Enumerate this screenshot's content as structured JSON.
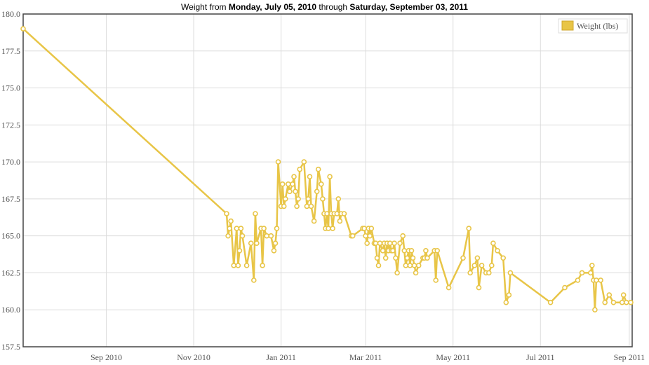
{
  "chart_data": {
    "type": "line",
    "title": {
      "prefix": "Weight from ",
      "start": "Monday, July 05, 2010",
      "middle": " through ",
      "end": "Saturday, September 03, 2011"
    },
    "xlabel": "",
    "ylabel": "",
    "ylim": [
      157.5,
      180.0
    ],
    "xlim": [
      "2010-07-05",
      "2011-09-03"
    ],
    "y_ticks": [
      "157.5",
      "160.0",
      "162.5",
      "165.0",
      "167.5",
      "170.0",
      "172.5",
      "175.0",
      "177.5",
      "180.0"
    ],
    "x_ticks": [
      {
        "label": "Sep 2010",
        "date": "2010-09-01"
      },
      {
        "label": "Nov 2010",
        "date": "2010-11-01"
      },
      {
        "label": "Jan 2011",
        "date": "2011-01-01"
      },
      {
        "label": "Mar 2011",
        "date": "2011-03-01"
      },
      {
        "label": "May 2011",
        "date": "2011-05-01"
      },
      {
        "label": "Jul 2011",
        "date": "2011-07-01"
      },
      {
        "label": "Sep 2011",
        "date": "2011-09-01"
      }
    ],
    "grid": true,
    "legend_position": "top-right",
    "color": "#e8c547",
    "series": [
      {
        "name": "Weight (lbs)",
        "points": [
          [
            "2010-07-05",
            179.0
          ],
          [
            "2010-11-24",
            166.5
          ],
          [
            "2010-11-25",
            165.0
          ],
          [
            "2010-11-26",
            165.5
          ],
          [
            "2010-11-27",
            166.0
          ],
          [
            "2010-11-29",
            163.0
          ],
          [
            "2010-12-01",
            165.5
          ],
          [
            "2010-12-02",
            163.0
          ],
          [
            "2010-12-03",
            164.0
          ],
          [
            "2010-12-04",
            165.5
          ],
          [
            "2010-12-05",
            165.0
          ],
          [
            "2010-12-08",
            163.0
          ],
          [
            "2010-12-11",
            164.5
          ],
          [
            "2010-12-13",
            162.0
          ],
          [
            "2010-12-14",
            166.5
          ],
          [
            "2010-12-15",
            164.5
          ],
          [
            "2010-12-18",
            165.5
          ],
          [
            "2010-12-19",
            163.0
          ],
          [
            "2010-12-20",
            165.5
          ],
          [
            "2010-12-22",
            165.0
          ],
          [
            "2010-12-25",
            165.0
          ],
          [
            "2010-12-27",
            164.0
          ],
          [
            "2010-12-28",
            164.5
          ],
          [
            "2010-12-29",
            165.5
          ],
          [
            "2010-12-30",
            170.0
          ],
          [
            "2011-01-01",
            167.0
          ],
          [
            "2011-01-02",
            168.5
          ],
          [
            "2011-01-03",
            167.0
          ],
          [
            "2011-01-04",
            167.5
          ],
          [
            "2011-01-06",
            168.5
          ],
          [
            "2011-01-07",
            168.0
          ],
          [
            "2011-01-09",
            168.5
          ],
          [
            "2011-01-10",
            169.0
          ],
          [
            "2011-01-11",
            168.0
          ],
          [
            "2011-01-12",
            167.0
          ],
          [
            "2011-01-13",
            167.5
          ],
          [
            "2011-01-14",
            169.5
          ],
          [
            "2011-01-17",
            170.0
          ],
          [
            "2011-01-19",
            167.0
          ],
          [
            "2011-01-20",
            167.5
          ],
          [
            "2011-01-21",
            169.0
          ],
          [
            "2011-01-22",
            167.0
          ],
          [
            "2011-01-24",
            166.0
          ],
          [
            "2011-01-26",
            168.0
          ],
          [
            "2011-01-27",
            169.5
          ],
          [
            "2011-01-29",
            168.5
          ],
          [
            "2011-01-30",
            167.5
          ],
          [
            "2011-01-31",
            166.5
          ],
          [
            "2011-02-01",
            165.5
          ],
          [
            "2011-02-02",
            166.5
          ],
          [
            "2011-02-03",
            165.5
          ],
          [
            "2011-02-04",
            169.0
          ],
          [
            "2011-02-05",
            166.5
          ],
          [
            "2011-02-06",
            165.5
          ],
          [
            "2011-02-07",
            166.5
          ],
          [
            "2011-02-09",
            166.5
          ],
          [
            "2011-02-10",
            167.5
          ],
          [
            "2011-02-11",
            166.0
          ],
          [
            "2011-02-12",
            166.5
          ],
          [
            "2011-02-14",
            166.5
          ],
          [
            "2011-02-19",
            165.0
          ],
          [
            "2011-02-20",
            165.0
          ],
          [
            "2011-02-27",
            165.5
          ],
          [
            "2011-02-28",
            165.5
          ],
          [
            "2011-03-01",
            165.0
          ],
          [
            "2011-03-02",
            164.5
          ],
          [
            "2011-03-03",
            165.5
          ],
          [
            "2011-03-04",
            165.0
          ],
          [
            "2011-03-05",
            165.5
          ],
          [
            "2011-03-07",
            164.5
          ],
          [
            "2011-03-08",
            164.5
          ],
          [
            "2011-03-09",
            163.5
          ],
          [
            "2011-03-10",
            163.0
          ],
          [
            "2011-03-11",
            164.5
          ],
          [
            "2011-03-13",
            164.0
          ],
          [
            "2011-03-14",
            164.5
          ],
          [
            "2011-03-15",
            163.5
          ],
          [
            "2011-03-16",
            164.5
          ],
          [
            "2011-03-17",
            164.0
          ],
          [
            "2011-03-18",
            164.5
          ],
          [
            "2011-03-19",
            164.0
          ],
          [
            "2011-03-20",
            164.0
          ],
          [
            "2011-03-21",
            164.5
          ],
          [
            "2011-03-22",
            163.5
          ],
          [
            "2011-03-23",
            162.5
          ],
          [
            "2011-03-25",
            164.5
          ],
          [
            "2011-03-27",
            165.0
          ],
          [
            "2011-03-28",
            164.0
          ],
          [
            "2011-03-29",
            163.0
          ],
          [
            "2011-03-30",
            163.5
          ],
          [
            "2011-03-31",
            164.0
          ],
          [
            "2011-04-01",
            163.0
          ],
          [
            "2011-04-02",
            164.0
          ],
          [
            "2011-04-03",
            163.5
          ],
          [
            "2011-04-04",
            163.0
          ],
          [
            "2011-04-05",
            162.5
          ],
          [
            "2011-04-07",
            163.0
          ],
          [
            "2011-04-10",
            163.5
          ],
          [
            "2011-04-11",
            163.5
          ],
          [
            "2011-04-12",
            164.0
          ],
          [
            "2011-04-13",
            163.5
          ],
          [
            "2011-04-18",
            164.0
          ],
          [
            "2011-04-19",
            162.0
          ],
          [
            "2011-04-20",
            164.0
          ],
          [
            "2011-04-28",
            161.5
          ],
          [
            "2011-05-08",
            163.5
          ],
          [
            "2011-05-12",
            165.5
          ],
          [
            "2011-05-13",
            162.5
          ],
          [
            "2011-05-16",
            163.0
          ],
          [
            "2011-05-18",
            163.5
          ],
          [
            "2011-05-19",
            161.5
          ],
          [
            "2011-05-21",
            163.0
          ],
          [
            "2011-05-24",
            162.5
          ],
          [
            "2011-05-26",
            162.5
          ],
          [
            "2011-05-28",
            163.0
          ],
          [
            "2011-05-29",
            164.5
          ],
          [
            "2011-06-01",
            164.0
          ],
          [
            "2011-06-05",
            163.5
          ],
          [
            "2011-06-07",
            160.5
          ],
          [
            "2011-06-09",
            161.0
          ],
          [
            "2011-06-10",
            162.5
          ],
          [
            "2011-07-08",
            160.5
          ],
          [
            "2011-07-18",
            161.5
          ],
          [
            "2011-07-27",
            162.0
          ],
          [
            "2011-07-30",
            162.5
          ],
          [
            "2011-08-05",
            162.5
          ],
          [
            "2011-08-06",
            163.0
          ],
          [
            "2011-08-07",
            162.0
          ],
          [
            "2011-08-08",
            160.0
          ],
          [
            "2011-08-09",
            162.0
          ],
          [
            "2011-08-12",
            162.0
          ],
          [
            "2011-08-15",
            160.5
          ],
          [
            "2011-08-18",
            161.0
          ],
          [
            "2011-08-21",
            160.5
          ],
          [
            "2011-08-27",
            160.5
          ],
          [
            "2011-08-28",
            161.0
          ],
          [
            "2011-08-30",
            160.5
          ],
          [
            "2011-09-02",
            160.5
          ]
        ]
      }
    ]
  }
}
